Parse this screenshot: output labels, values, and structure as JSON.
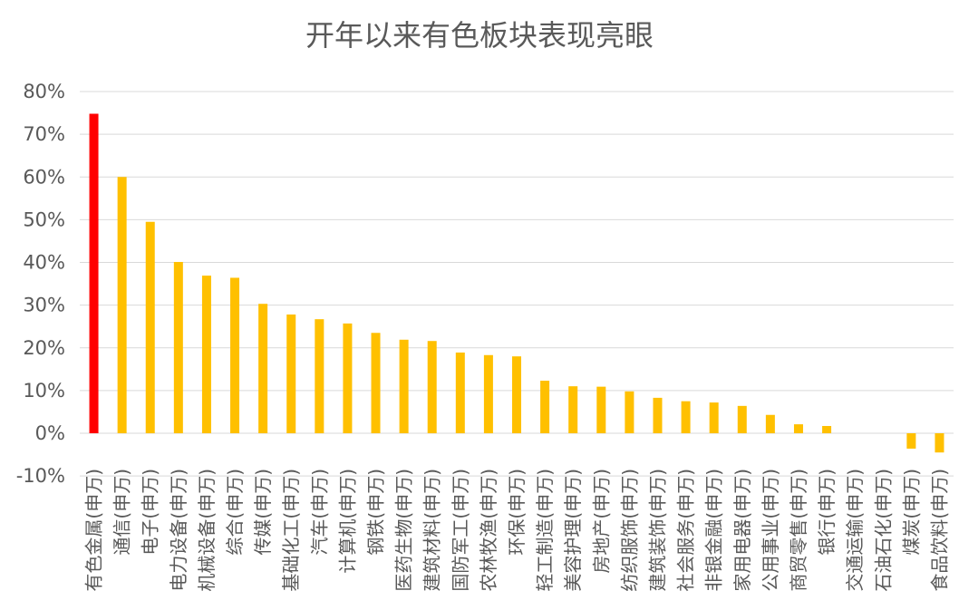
{
  "chart_data": {
    "type": "bar",
    "title": "开年以来有色板块表现亮眼",
    "xlabel": "",
    "ylabel": "",
    "ylim": [
      -10,
      80
    ],
    "yticks": [
      -10,
      0,
      10,
      20,
      30,
      40,
      50,
      60,
      70,
      80
    ],
    "ytick_labels": [
      "-10%",
      "0%",
      "10%",
      "20%",
      "30%",
      "40%",
      "50%",
      "60%",
      "70%",
      "80%"
    ],
    "grid": true,
    "legend": "none",
    "colors": {
      "highlight": "#ff0000",
      "default": "#ffc000"
    },
    "highlight_index": 0,
    "categories": [
      "有色金属(申万)",
      "通信(申万)",
      "电子(申万)",
      "电力设备(申万)",
      "机械设备(申万)",
      "综合(申万)",
      "传媒(申万)",
      "基础化工(申万)",
      "汽车(申万)",
      "计算机(申万)",
      "钢铁(申万)",
      "医药生物(申万)",
      "建筑材料(申万)",
      "国防军工(申万)",
      "农林牧渔(申万)",
      "环保(申万)",
      "轻工制造(申万)",
      "美容护理(申万)",
      "房地产(申万)",
      "纺织服饰(申万)",
      "建筑装饰(申万)",
      "社会服务(申万)",
      "非银金融(申万)",
      "家用电器(申万)",
      "公用事业(申万)",
      "商贸零售(申万)",
      "银行(申万)",
      "交通运输(申万)",
      "石油石化(申万)",
      "煤炭(申万)",
      "食品饮料(申万)"
    ],
    "values": [
      74.8,
      60.0,
      49.5,
      40.1,
      36.9,
      36.4,
      30.3,
      27.8,
      26.7,
      25.7,
      23.5,
      21.9,
      21.6,
      18.9,
      18.3,
      18.0,
      12.3,
      11.0,
      10.9,
      9.8,
      8.3,
      7.5,
      7.2,
      6.4,
      4.3,
      2.1,
      1.7,
      0.0,
      0.0,
      -3.6,
      -4.5
    ]
  }
}
